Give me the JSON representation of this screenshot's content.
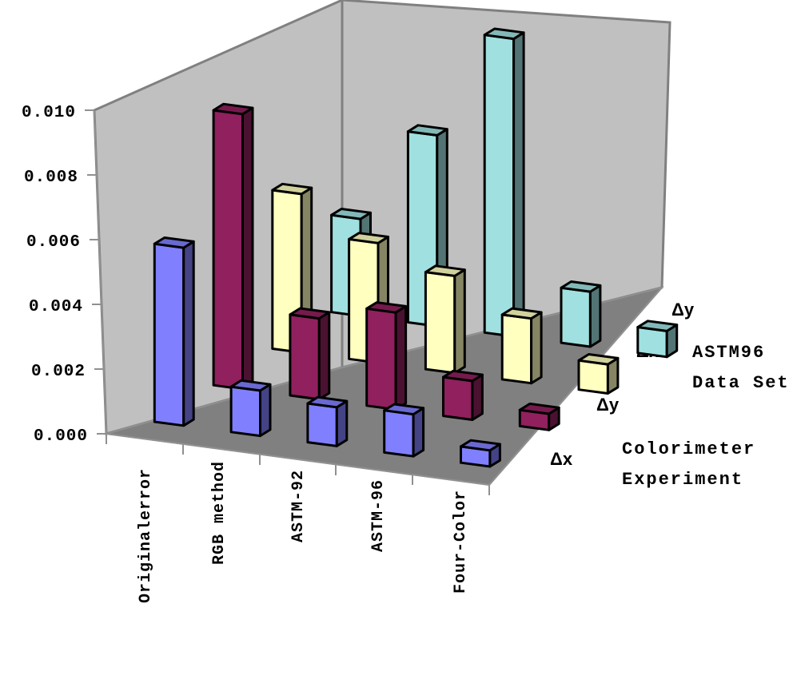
{
  "chart_data": {
    "type": "bar",
    "variant": "3d-grouped-column",
    "categories": [
      "Originalerror",
      "RGB method",
      "ASTM-92",
      "ASTM-96",
      "Four-Color"
    ],
    "rows": [
      {
        "symbol": "Δ",
        "var": "x",
        "group": "Colorimeter Experiment"
      },
      {
        "symbol": "Δ",
        "var": "y",
        "group": "Colorimeter Experiment"
      },
      {
        "symbol": "Δ",
        "var": "x",
        "group": "ASTM96 Data Set"
      },
      {
        "symbol": "Δ",
        "var": "y",
        "group": "ASTM96 Data Set"
      }
    ],
    "series": [
      {
        "name": "Colorimeter Experiment Δx",
        "color": "#8080FF",
        "values": [
          0.0055,
          0.0014,
          0.0012,
          0.0013,
          0.0005
        ]
      },
      {
        "name": "Colorimeter Experiment Δy",
        "color": "#90205E",
        "values": [
          0.0085,
          0.0025,
          0.003,
          0.0012,
          0.0005
        ]
      },
      {
        "name": "ASTM96 Data Set Δx",
        "color": "#FFFFC0",
        "values": [
          0.0049,
          0.0037,
          0.003,
          0.002,
          0.0009
        ]
      },
      {
        "name": "ASTM96 Data Set Δy",
        "color": "#A0E0E0",
        "values": [
          0.003,
          0.0059,
          0.0092,
          0.0017,
          0.0008
        ]
      }
    ],
    "yticks": [
      "0.000",
      "0.002",
      "0.004",
      "0.006",
      "0.008",
      "0.010"
    ],
    "ylim": [
      0,
      0.01
    ],
    "groups": [
      {
        "line1": "ASTM96",
        "line2": "Data Set"
      },
      {
        "line1": "Colorimeter",
        "line2": "Experiment"
      }
    ],
    "colors": {
      "wall": "#C0C0C0",
      "floor": "#808080",
      "outline": "#000000"
    }
  }
}
